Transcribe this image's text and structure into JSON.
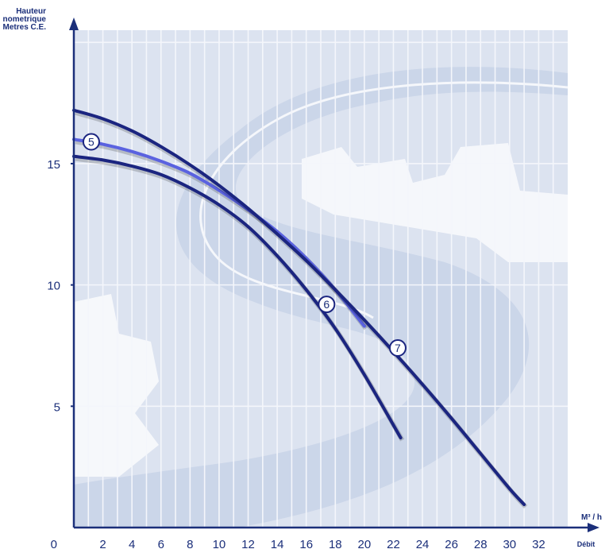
{
  "chart_data": {
    "type": "line",
    "ylabel": [
      "Hauteur",
      "nometrique",
      "Metres C.E."
    ],
    "xlabel": "Débit",
    "xunit": "M³ / h",
    "xlim": [
      0,
      34
    ],
    "ylim": [
      0,
      20.5
    ],
    "x_ticks": [
      2,
      4,
      6,
      8,
      10,
      12,
      14,
      16,
      18,
      20,
      22,
      24,
      26,
      28,
      30,
      32
    ],
    "y_ticks": [
      5,
      10,
      15
    ],
    "origin_label": "0",
    "grid": true,
    "colors": {
      "axis": "#1b2f7a",
      "grid_fill": "#dce3f0",
      "grid_line": "#f4f6fb",
      "curve_dark": "#1b2580",
      "curve_light": "#5a62e0",
      "watermark": "#c9d4e8"
    },
    "series": [
      {
        "name": "5",
        "color": "#5a62e0",
        "x": [
          0,
          2,
          4,
          6,
          8,
          10,
          12,
          14,
          16,
          18,
          20
        ],
        "y": [
          16.0,
          15.8,
          15.5,
          15.1,
          14.6,
          13.9,
          13.1,
          12.2,
          11.1,
          9.8,
          8.3
        ],
        "marker": {
          "x": 1.2,
          "y": 15.9
        }
      },
      {
        "name": "6",
        "color": "#1b2580",
        "x": [
          0,
          2,
          4,
          6,
          8,
          10,
          12,
          14,
          16,
          18,
          20,
          22.5
        ],
        "y": [
          15.3,
          15.15,
          14.9,
          14.55,
          14.0,
          13.3,
          12.4,
          11.2,
          9.8,
          8.2,
          6.3,
          3.7
        ],
        "marker": {
          "x": 17.4,
          "y": 9.2
        }
      },
      {
        "name": "7",
        "color": "#1b2580",
        "x": [
          0,
          2,
          4,
          6,
          8,
          10,
          12,
          14,
          16,
          18,
          20,
          22,
          24,
          26,
          28,
          30,
          31
        ],
        "y": [
          17.2,
          16.85,
          16.35,
          15.7,
          14.95,
          14.1,
          13.15,
          12.1,
          11.0,
          9.8,
          8.55,
          7.25,
          5.9,
          4.5,
          3.05,
          1.6,
          0.95
        ],
        "marker": {
          "x": 22.3,
          "y": 7.4
        }
      }
    ]
  }
}
